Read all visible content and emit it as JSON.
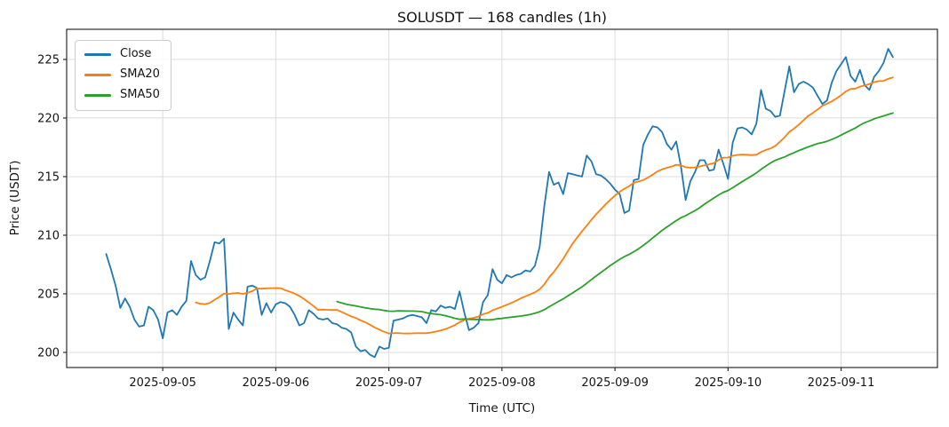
{
  "chart_data": {
    "type": "line",
    "title": "SOLUSDT — 168 candles (1h)",
    "xlabel": "Time (UTC)",
    "ylabel": "Price (USDT)",
    "n_points": 168,
    "interval": "1h",
    "x_start_label": "2025-09-04 12:00",
    "grid": true,
    "legend_position": "upper-left",
    "ylim": [
      198.71,
      227.57
    ],
    "xlim_index": [
      -8.4,
      176.45
    ],
    "y_ticks": [
      200,
      205,
      210,
      215,
      220,
      225
    ],
    "x_ticks": [
      {
        "index": 12,
        "label": "2025-09-05"
      },
      {
        "index": 36,
        "label": "2025-09-06"
      },
      {
        "index": 60,
        "label": "2025-09-07"
      },
      {
        "index": 84,
        "label": "2025-09-08"
      },
      {
        "index": 108,
        "label": "2025-09-09"
      },
      {
        "index": 132,
        "label": "2025-09-10"
      },
      {
        "index": 156,
        "label": "2025-09-11"
      }
    ],
    "colors": {
      "grid": "#dcdcdc",
      "spine": "#2b2b2b",
      "text": "#141414"
    },
    "series": [
      {
        "name": "Close",
        "color": "#1f77b4",
        "values": [
          208.4,
          207.1,
          205.7,
          203.8,
          204.6,
          203.9,
          202.8,
          202.2,
          202.3,
          203.9,
          203.6,
          202.8,
          201.2,
          203.4,
          203.6,
          203.2,
          203.9,
          204.4,
          207.8,
          206.6,
          206.2,
          206.4,
          207.8,
          209.4,
          209.3,
          209.7,
          202.0,
          203.4,
          202.8,
          202.3,
          205.6,
          205.7,
          205.5,
          203.2,
          204.2,
          203.4,
          204.1,
          204.3,
          204.2,
          203.9,
          203.2,
          202.3,
          202.5,
          203.6,
          203.3,
          202.9,
          202.8,
          202.9,
          202.5,
          202.4,
          202.1,
          202.0,
          201.7,
          200.5,
          200.1,
          200.2,
          199.8,
          199.6,
          200.5,
          200.3,
          200.4,
          202.7,
          202.8,
          202.9,
          203.1,
          203.2,
          203.1,
          203.0,
          202.5,
          203.6,
          203.5,
          204.0,
          203.8,
          203.9,
          203.7,
          205.2,
          203.4,
          201.9,
          202.1,
          202.5,
          204.3,
          204.9,
          207.1,
          206.2,
          205.9,
          206.6,
          206.4,
          206.6,
          206.7,
          207.0,
          206.9,
          207.4,
          209.0,
          212.5,
          215.4,
          214.3,
          214.5,
          213.5,
          215.3,
          215.2,
          215.1,
          215.0,
          216.8,
          216.3,
          215.2,
          215.1,
          214.8,
          214.4,
          213.9,
          213.5,
          211.9,
          212.1,
          214.7,
          214.8,
          217.7,
          218.6,
          219.3,
          219.2,
          218.8,
          217.8,
          217.3,
          218.0,
          215.9,
          213.0,
          214.6,
          215.4,
          216.4,
          216.4,
          215.5,
          215.6,
          217.3,
          216.1,
          214.8,
          217.9,
          219.1,
          219.2,
          219.0,
          218.6,
          219.5,
          222.4,
          220.8,
          220.6,
          220.1,
          220.2,
          222.3,
          224.4,
          222.2,
          222.9,
          223.1,
          222.9,
          222.6,
          221.9,
          221.2,
          221.5,
          223.0,
          224.0,
          224.6,
          225.2,
          223.6,
          223.1,
          224.1,
          222.8,
          222.4,
          223.5,
          224.0,
          224.7,
          225.9,
          225.2
        ]
      },
      {
        "name": "SMA20",
        "color": "#ff7f0e",
        "derived": "sma",
        "window": 20
      },
      {
        "name": "SMA50",
        "color": "#2ca02c",
        "derived": "sma",
        "window": 50
      }
    ]
  }
}
